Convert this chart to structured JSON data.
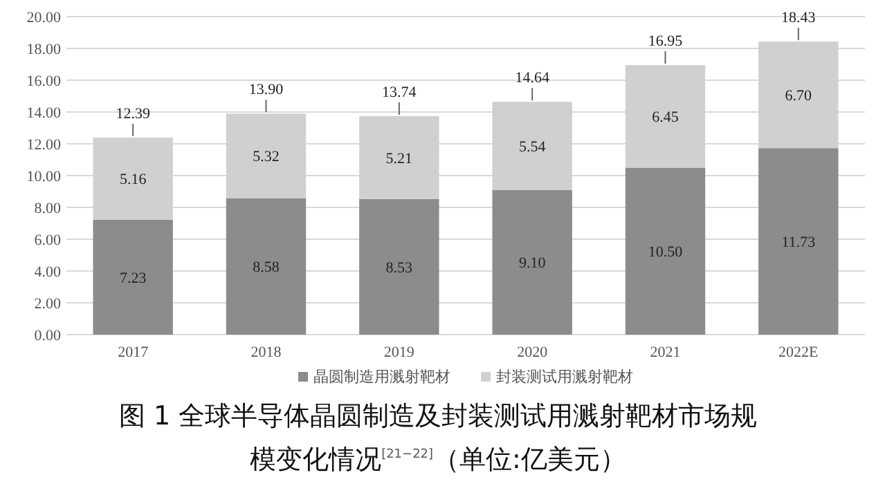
{
  "chart_data": {
    "type": "bar",
    "stacked": true,
    "title": "图 1 全球半导体晶圆制造及封装测试用溅射靶材市场规模变化情况$^{[21−22]}$（单位:亿美元）",
    "categories": [
      "2017",
      "2018",
      "2019",
      "2020",
      "2021",
      "2022E"
    ],
    "series": [
      {
        "name": "晶圆制造用溅射靶材",
        "color": "#8c8c8c",
        "values": [
          7.23,
          8.58,
          8.53,
          9.1,
          10.5,
          11.73
        ],
        "value_labels": [
          "7.23",
          "8.58",
          "8.53",
          "9.10",
          "10.50",
          "11.73"
        ]
      },
      {
        "name": "封装测试用溅射靶材",
        "color": "#d0d0d0",
        "values": [
          5.16,
          5.32,
          5.21,
          5.54,
          6.45,
          6.7
        ],
        "value_labels": [
          "5.16",
          "5.32",
          "5.21",
          "5.54",
          "6.45",
          "6.70"
        ]
      }
    ],
    "totals": [
      "12.39",
      "13.90",
      "13.74",
      "14.64",
      "16.95",
      "18.43"
    ],
    "ylim": [
      0,
      20
    ],
    "yticks": [
      {
        "value": 0,
        "label": "0.00"
      },
      {
        "value": 2,
        "label": "2.00"
      },
      {
        "value": 4,
        "label": "4.00"
      },
      {
        "value": 6,
        "label": "6.00"
      },
      {
        "value": 8,
        "label": "8.00"
      },
      {
        "value": 10,
        "label": "10.00"
      },
      {
        "value": 12,
        "label": "12.00"
      },
      {
        "value": 14,
        "label": "14.00"
      },
      {
        "value": 16,
        "label": "16.00"
      },
      {
        "value": 18,
        "label": "18.00"
      },
      {
        "value": 20,
        "label": "20.00"
      }
    ],
    "grid": "y",
    "legend": "bottom"
  }
}
